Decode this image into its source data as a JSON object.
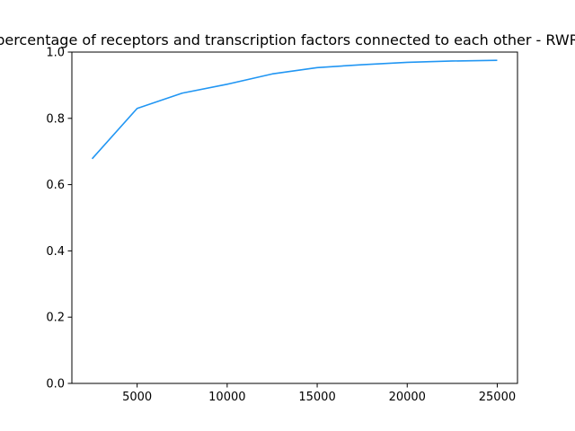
{
  "chart_data": {
    "type": "line",
    "title": "percentage of receptors and transcription factors connected to each other - RWR",
    "xlabel": "",
    "ylabel": "",
    "xlim": [
      1375,
      26125
    ],
    "ylim": [
      0,
      1
    ],
    "x_ticks": [
      5000,
      10000,
      15000,
      20000,
      25000
    ],
    "y_ticks": [
      0.0,
      0.2,
      0.4,
      0.6,
      0.8,
      1.0
    ],
    "x_tick_labels": [
      "5000",
      "10000",
      "15000",
      "20000",
      "25000"
    ],
    "y_tick_labels": [
      "0.0",
      "0.2",
      "0.4",
      "0.6",
      "0.8",
      "1.0"
    ],
    "grid": false,
    "series": [
      {
        "color": "#2196f3",
        "x": [
          2500,
          5000,
          7500,
          10000,
          12500,
          15000,
          17500,
          20000,
          22500,
          25000
        ],
        "y": [
          0.678,
          0.83,
          0.876,
          0.903,
          0.934,
          0.953,
          0.962,
          0.969,
          0.973,
          0.975
        ]
      }
    ]
  }
}
